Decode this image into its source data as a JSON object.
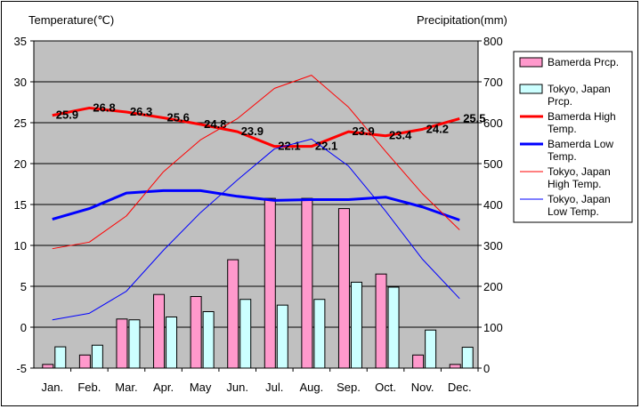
{
  "chart_data": {
    "type": "bar",
    "left_axis_title": "Temperature(℃)",
    "right_axis_title": "Precipitation(mm)",
    "categories": [
      "Jan.",
      "Feb.",
      "Mar.",
      "Apr.",
      "May",
      "Jun.",
      "Jul.",
      "Aug.",
      "Sep.",
      "Oct.",
      "Nov.",
      "Dec."
    ],
    "y_left": {
      "min": -5,
      "max": 35,
      "ticks": [
        -5,
        0,
        5,
        10,
        15,
        20,
        25,
        30,
        35
      ]
    },
    "y_right": {
      "min": 0,
      "max": 800,
      "ticks": [
        0,
        100,
        200,
        300,
        400,
        500,
        600,
        700,
        800
      ]
    },
    "grid": "horizontal",
    "legend_position": "right",
    "plot_background": "#c0c0c0",
    "series": [
      {
        "name": "Bamerda Prcp.",
        "kind": "bar",
        "axis": "right",
        "color": "#ff99cc",
        "values": [
          9,
          32,
          120,
          180,
          175,
          265,
          415,
          415,
          390,
          230,
          32,
          9
        ]
      },
      {
        "name": "Tokyo, Japan Prcp.",
        "kind": "bar",
        "axis": "right",
        "color": "#ccffff",
        "values": [
          52,
          56,
          118,
          125,
          138,
          168,
          154,
          168,
          210,
          198,
          93,
          51
        ]
      },
      {
        "name": "Bamerda High Temp.",
        "kind": "line",
        "axis": "left",
        "color": "#ff0000",
        "width": 3,
        "values": [
          25.9,
          26.8,
          26.3,
          25.6,
          24.8,
          23.9,
          22.1,
          22.1,
          23.9,
          23.4,
          24.2,
          25.5
        ],
        "labels": [
          "25.9",
          "26.8",
          "26.3",
          "25.6",
          "24.8",
          "23.9",
          "22.1",
          "22.1",
          "23.9",
          "23.4",
          "24.2",
          "25.5"
        ]
      },
      {
        "name": "Bamerda Low Temp.",
        "kind": "line",
        "axis": "left",
        "color": "#0000ff",
        "width": 3,
        "values": [
          13.2,
          14.5,
          16.4,
          16.7,
          16.7,
          16.0,
          15.5,
          15.6,
          15.6,
          15.9,
          14.7,
          13.1
        ]
      },
      {
        "name": "Tokyo, Japan High Temp.",
        "kind": "line",
        "axis": "left",
        "color": "#ff0000",
        "width": 1,
        "values": [
          9.6,
          10.4,
          13.6,
          19.0,
          22.9,
          25.5,
          29.2,
          30.8,
          26.9,
          21.5,
          16.3,
          11.9
        ]
      },
      {
        "name": "Tokyo, Japan Low Temp.",
        "kind": "line",
        "axis": "left",
        "color": "#0000ff",
        "width": 1,
        "values": [
          0.9,
          1.7,
          4.4,
          9.4,
          14.0,
          18.0,
          21.8,
          23.0,
          19.7,
          14.2,
          8.3,
          3.5
        ]
      }
    ],
    "legend": [
      {
        "label_lines": [
          "Bamerda Prcp."
        ],
        "marker": "box",
        "color": "#ff99cc"
      },
      {
        "label_lines": [
          "Tokyo, Japan",
          "Prcp."
        ],
        "marker": "box",
        "color": "#ccffff"
      },
      {
        "label_lines": [
          "Bamerda High",
          "Temp."
        ],
        "marker": "line",
        "color": "#ff0000",
        "width": 3
      },
      {
        "label_lines": [
          "Bamerda Low",
          "Temp."
        ],
        "marker": "line",
        "color": "#0000ff",
        "width": 3
      },
      {
        "label_lines": [
          "Tokyo, Japan",
          "High Temp."
        ],
        "marker": "line",
        "color": "#ff0000",
        "width": 1
      },
      {
        "label_lines": [
          "Tokyo, Japan",
          "Low Temp."
        ],
        "marker": "line",
        "color": "#0000ff",
        "width": 1
      }
    ]
  }
}
